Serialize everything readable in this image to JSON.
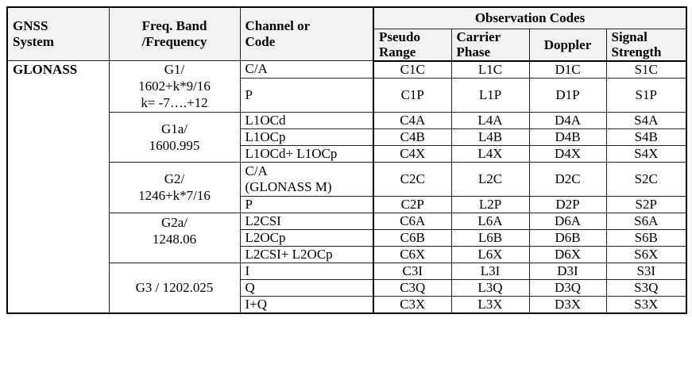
{
  "table": {
    "header": {
      "system": "GNSS System",
      "system_line1": "GNSS",
      "system_line2": "System",
      "band_line1": "Freq. Band",
      "band_line2": "/Frequency",
      "channel_line1": "Channel or",
      "channel_line2": "Code",
      "obs_group": "Observation Codes",
      "pseudo_line1": "Pseudo",
      "pseudo_line2": "Range",
      "carrier_line1": "Carrier",
      "carrier_line2": "Phase",
      "doppler": "Doppler",
      "signal_line1": "Signal",
      "signal_line2": "Strength"
    },
    "system_name": "GLONASS",
    "bands": {
      "g1_line1": "G1/",
      "g1_line2": "1602+k*9/16",
      "g1_line3": "k= -7….+12",
      "g1a_line1": "G1a/",
      "g1a_line2": "1600.995",
      "g2_line1": "G2/",
      "g2_line2": "1246+k*7/16",
      "g2a_line1": "G2a/",
      "g2a_line2": "1248.06",
      "g3": "G3 / 1202.025"
    },
    "rows": [
      {
        "channel": "C/A",
        "pseudo": "C1C",
        "carrier": "L1C",
        "doppler": "D1C",
        "signal": "S1C"
      },
      {
        "channel": "P",
        "pseudo": "C1P",
        "carrier": "L1P",
        "doppler": "D1P",
        "signal": "S1P"
      },
      {
        "channel": "L1OCd",
        "pseudo": "C4A",
        "carrier": "L4A",
        "doppler": "D4A",
        "signal": "S4A"
      },
      {
        "channel": "L1OCp",
        "pseudo": "C4B",
        "carrier": "L4B",
        "doppler": "D4B",
        "signal": "S4B"
      },
      {
        "channel": "L1OCd+ L1OCp",
        "pseudo": "C4X",
        "carrier": "L4X",
        "doppler": "D4X",
        "signal": "S4X"
      },
      {
        "channel_line1": "C/A",
        "channel_line2": "(GLONASS M)",
        "pseudo": "C2C",
        "carrier": "L2C",
        "doppler": "D2C",
        "signal": "S2C"
      },
      {
        "channel": "P",
        "pseudo": "C2P",
        "carrier": "L2P",
        "doppler": "D2P",
        "signal": "S2P"
      },
      {
        "channel": "L2CSI",
        "pseudo": "C6A",
        "carrier": "L6A",
        "doppler": "D6A",
        "signal": "S6A"
      },
      {
        "channel": "L2OCp",
        "pseudo": "C6B",
        "carrier": "L6B",
        "doppler": "D6B",
        "signal": "S6B"
      },
      {
        "channel": "L2CSI+ L2OCp",
        "pseudo": "C6X",
        "carrier": "L6X",
        "doppler": "D6X",
        "signal": "S6X"
      },
      {
        "channel": "I",
        "pseudo": "C3I",
        "carrier": "L3I",
        "doppler": "D3I",
        "signal": "S3I"
      },
      {
        "channel": "Q",
        "pseudo": "C3Q",
        "carrier": "L3Q",
        "doppler": "D3Q",
        "signal": "S3Q"
      },
      {
        "channel": "I+Q",
        "pseudo": "C3X",
        "carrier": "L3X",
        "doppler": "D3X",
        "signal": "S3X"
      }
    ]
  }
}
